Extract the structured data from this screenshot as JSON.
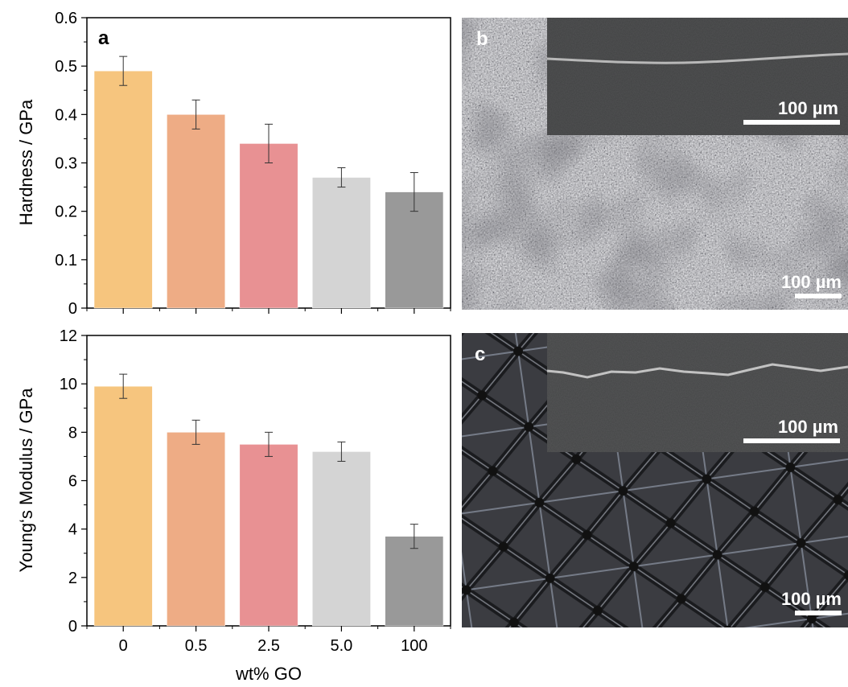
{
  "chart_data": [
    {
      "type": "bar",
      "panel_label": "a",
      "categories": [
        "0",
        "0.5",
        "2.5",
        "5.0",
        "100"
      ],
      "values": [
        0.49,
        0.4,
        0.34,
        0.27,
        0.24
      ],
      "errors": [
        0.03,
        0.03,
        0.04,
        0.02,
        0.04
      ],
      "bar_colors": [
        "#f6c57e",
        "#eeac85",
        "#e89193",
        "#d4d4d4",
        "#999999"
      ],
      "ylabel": "Hardness / GPa",
      "xlabel": "",
      "ylim": [
        0,
        0.6
      ],
      "yticks": [
        "0",
        "0.1",
        "0.2",
        "0.3",
        "0.4",
        "0.5",
        "0.6"
      ],
      "show_xtick_labels": false,
      "grid": false
    },
    {
      "type": "bar",
      "panel_label": "",
      "categories": [
        "0",
        "0.5",
        "2.5",
        "5.0",
        "100"
      ],
      "values": [
        9.9,
        8.0,
        7.5,
        7.2,
        3.7
      ],
      "errors": [
        0.5,
        0.5,
        0.5,
        0.4,
        0.5
      ],
      "bar_colors": [
        "#f6c57e",
        "#eeac85",
        "#e89193",
        "#d4d4d4",
        "#999999"
      ],
      "ylabel": "Young‘s Modulus / GPa",
      "xlabel": "wt% GO",
      "ylim": [
        0,
        12
      ],
      "yticks": [
        "0",
        "2",
        "4",
        "6",
        "8",
        "10",
        "12"
      ],
      "show_xtick_labels": true,
      "grid": false
    }
  ],
  "micrographs": [
    {
      "panel_label": "b",
      "inset_scale_bar": "100 µm",
      "main_scale_bar": "100 µm"
    },
    {
      "panel_label": "c",
      "inset_scale_bar": "100 µm",
      "main_scale_bar": "100 µm"
    }
  ]
}
